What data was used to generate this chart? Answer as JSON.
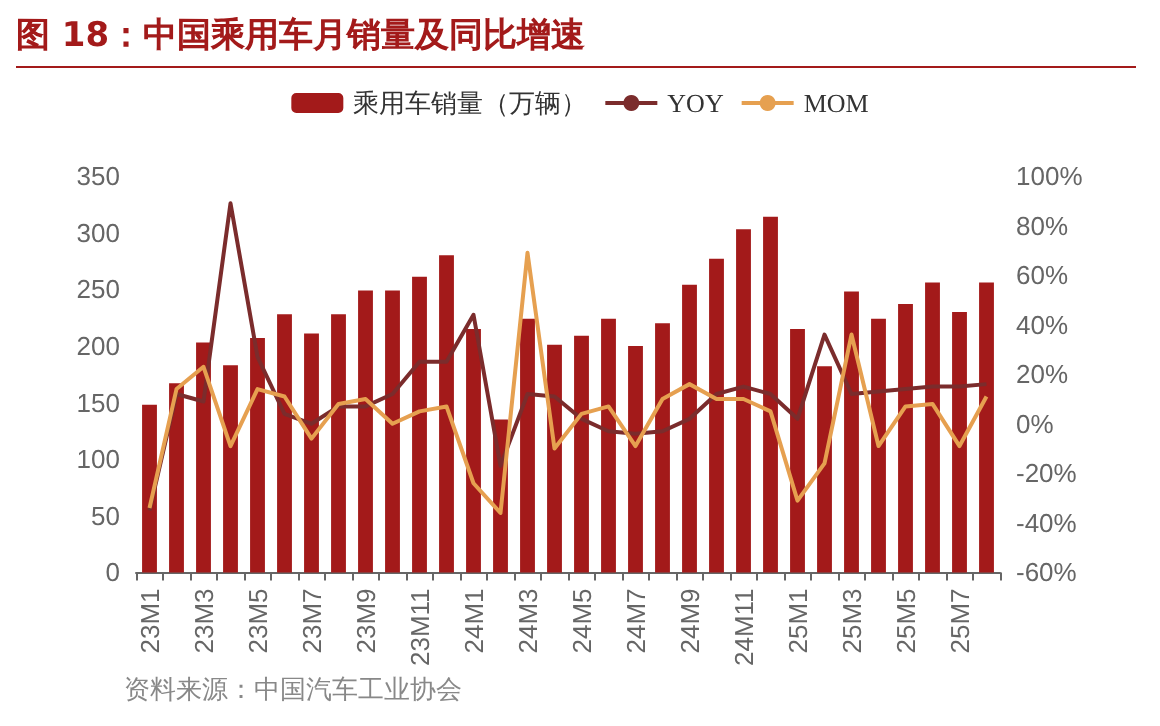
{
  "chart_data": {
    "type": "bar",
    "title": "图 18：中国乘用车月销量及同比增速",
    "categories": [
      "23M1",
      null,
      "23M3",
      null,
      "23M5",
      null,
      "23M7",
      null,
      "23M9",
      null,
      "23M11",
      null,
      "24M1",
      null,
      "24M3",
      null,
      "24M5",
      null,
      "24M7",
      null,
      "24M9",
      null,
      "24M11",
      null,
      "25M1",
      null,
      "25M3",
      null,
      "25M5",
      null,
      "25M7",
      null
    ],
    "series": [
      {
        "name": "乘用车销量（万辆）",
        "color": "#a31a1a",
        "values": [
          148,
          167,
          203,
          183,
          207,
          228,
          211,
          228,
          249,
          249,
          261,
          280,
          215,
          135,
          224,
          201,
          209,
          224,
          200,
          220,
          254,
          277,
          303,
          314,
          215,
          182,
          248,
          224,
          237,
          256,
          230,
          256
        ]
      },
      {
        "name": "YOY",
        "type": "line",
        "axis": "y2",
        "color": "#7b2c2c",
        "values": [
          -35,
          12,
          9,
          89,
          27,
          4,
          0,
          7,
          7,
          12,
          25,
          25,
          44,
          -17,
          12,
          11,
          2,
          -3,
          -4,
          -3,
          2,
          12,
          15,
          12,
          2,
          36,
          12,
          13,
          14,
          15,
          15,
          16
        ]
      },
      {
        "name": "MOM",
        "type": "line",
        "axis": "y2",
        "color": "#e6a050",
        "values": [
          -34,
          14,
          23,
          -9,
          14,
          11,
          -6,
          8,
          10,
          0,
          5,
          7,
          -24,
          -36,
          69,
          -10,
          4,
          7,
          -9,
          10,
          16,
          10,
          10,
          5,
          -31,
          -16,
          36,
          -9,
          7,
          8,
          -9,
          11
        ]
      }
    ],
    "ylim": [
      0,
      350
    ],
    "yticks": [
      0,
      50,
      100,
      150,
      200,
      250,
      300,
      350
    ],
    "y2lim": [
      -60,
      100
    ],
    "y2ticks": [
      {
        "value": -60,
        "label": "-60%"
      },
      {
        "value": -40,
        "label": "-40%"
      },
      {
        "value": -20,
        "label": "-20%"
      },
      {
        "value": 0,
        "label": "0%"
      },
      {
        "value": 20,
        "label": "20%"
      },
      {
        "value": 40,
        "label": "40%"
      },
      {
        "value": 60,
        "label": "60%"
      },
      {
        "value": 80,
        "label": "80%"
      },
      {
        "value": 100,
        "label": "100%"
      }
    ],
    "legend": "top",
    "grid": false,
    "annotations": [
      "资料来源：中国汽车工业协会"
    ]
  }
}
